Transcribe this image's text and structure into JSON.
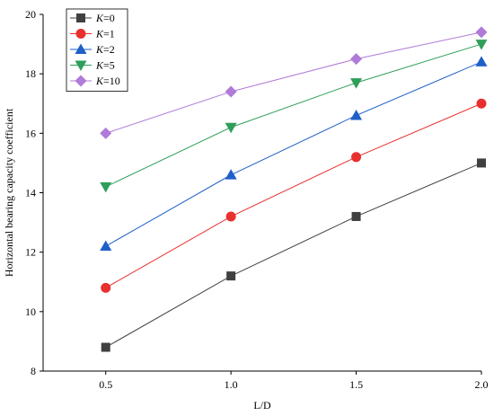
{
  "chart_data": {
    "type": "line",
    "xlabel": "L/D",
    "ylabel": "Horizontal bearing capacity coefficient",
    "x": [
      0.5,
      1.0,
      1.5,
      2.0
    ],
    "xlim": [
      0.25,
      2.0
    ],
    "ylim": [
      8,
      20
    ],
    "xticks": [
      0.5,
      1.0,
      1.5,
      2.0
    ],
    "xtick_labels": [
      "0.5",
      "1.0",
      "1.5",
      "2.0"
    ],
    "yticks": [
      8,
      10,
      12,
      14,
      16,
      18,
      20
    ],
    "ytick_labels": [
      "8",
      "10",
      "12",
      "14",
      "16",
      "18",
      "20"
    ],
    "legend_position": "top-left",
    "grid": false,
    "series": [
      {
        "name": "K=0",
        "legend_var": "K",
        "legend_suffix": "=0",
        "color": "#404040",
        "marker": "square",
        "values": [
          8.8,
          11.2,
          13.2,
          15.0
        ]
      },
      {
        "name": "K=1",
        "legend_var": "K",
        "legend_suffix": "=1",
        "color": "#e8302f",
        "marker": "circle",
        "values": [
          10.8,
          13.2,
          15.2,
          17.0
        ]
      },
      {
        "name": "K=2",
        "legend_var": "K",
        "legend_suffix": "=2",
        "color": "#1f5fc8",
        "marker": "triangle-up",
        "values": [
          12.2,
          14.6,
          16.6,
          18.4
        ]
      },
      {
        "name": "K=5",
        "legend_var": "K",
        "legend_suffix": "=5",
        "color": "#2e9e5a",
        "marker": "triangle-down",
        "values": [
          14.2,
          16.2,
          17.7,
          19.0
        ]
      },
      {
        "name": "K=10",
        "legend_var": "K",
        "legend_suffix": "=10",
        "color": "#b07ad8",
        "marker": "diamond",
        "values": [
          16.0,
          17.4,
          18.5,
          19.4
        ]
      }
    ]
  }
}
